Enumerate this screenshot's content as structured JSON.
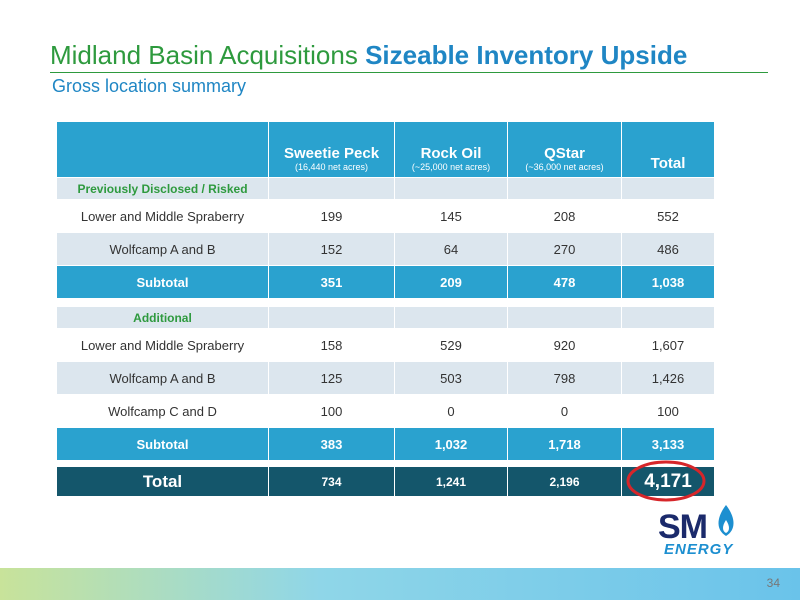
{
  "header": {
    "title_main": "Midland Basin Acquisitions",
    "title_emphasis": "Sizeable Inventory Upside",
    "subtitle": "Gross location summary"
  },
  "table": {
    "columns": [
      {
        "name": "Sweetie Peck",
        "note": "(16,440 net acres)"
      },
      {
        "name": "Rock Oil",
        "note": "(~25,000 net acres)"
      },
      {
        "name": "QStar",
        "note": "(~36,000 net acres)"
      },
      {
        "name": "Total"
      }
    ],
    "sections": [
      {
        "label": "Previously Disclosed / Risked",
        "rows": [
          {
            "label": "Lower and Middle Spraberry",
            "values": [
              "199",
              "145",
              "208",
              "552"
            ]
          },
          {
            "label": "Wolfcamp A and B",
            "values": [
              "152",
              "64",
              "270",
              "486"
            ]
          }
        ],
        "subtotal": {
          "label": "Subtotal",
          "values": [
            "351",
            "209",
            "478",
            "1,038"
          ]
        }
      },
      {
        "label": "Additional",
        "rows": [
          {
            "label": "Lower and Middle Spraberry",
            "values": [
              "158",
              "529",
              "920",
              "1,607"
            ]
          },
          {
            "label": "Wolfcamp A and B",
            "values": [
              "125",
              "503",
              "798",
              "1,426"
            ]
          },
          {
            "label": "Wolfcamp C and D",
            "values": [
              "100",
              "0",
              "0",
              "100"
            ]
          }
        ],
        "subtotal": {
          "label": "Subtotal",
          "values": [
            "383",
            "1,032",
            "1,718",
            "3,133"
          ]
        }
      }
    ],
    "total": {
      "label": "Total",
      "values": [
        "734",
        "1,241",
        "2,196",
        "4,171"
      ]
    }
  },
  "logo": {
    "mark": "SM",
    "word": "ENERGY"
  },
  "page_number": "34"
}
